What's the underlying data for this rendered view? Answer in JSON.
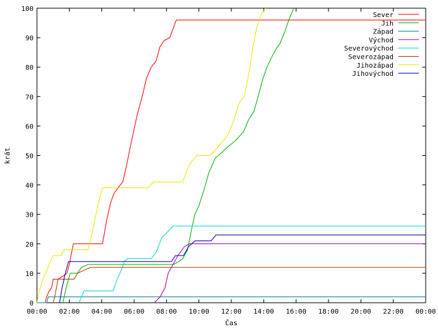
{
  "chart_data": {
    "type": "line",
    "xlabel": "Čas",
    "ylabel": "krát",
    "x_unit": "hours",
    "xlim": [
      0,
      24
    ],
    "ylim": [
      0,
      100
    ],
    "x_ticks": [
      {
        "value": 0,
        "label": "00:00"
      },
      {
        "value": 2,
        "label": "02:00"
      },
      {
        "value": 4,
        "label": "04:00"
      },
      {
        "value": 6,
        "label": "06:00"
      },
      {
        "value": 8,
        "label": "08:00"
      },
      {
        "value": 10,
        "label": "10:00"
      },
      {
        "value": 12,
        "label": "12:00"
      },
      {
        "value": 14,
        "label": "14:00"
      },
      {
        "value": 16,
        "label": "16:00"
      },
      {
        "value": 18,
        "label": "18:00"
      },
      {
        "value": 20,
        "label": "20:00"
      },
      {
        "value": 22,
        "label": "22:00"
      },
      {
        "value": 24,
        "label": "00:00"
      }
    ],
    "y_ticks": [
      0,
      10,
      20,
      30,
      40,
      50,
      60,
      70,
      80,
      90,
      100
    ],
    "grid": false,
    "legend_position": "top-right",
    "series": [
      {
        "name": "Sever",
        "color": "#ff0000",
        "points": [
          [
            0.5,
            0
          ],
          [
            0.6,
            2
          ],
          [
            0.75,
            4
          ],
          [
            0.9,
            5
          ],
          [
            1.0,
            8
          ],
          [
            1.3,
            8
          ],
          [
            1.6,
            9
          ],
          [
            1.85,
            10
          ],
          [
            2.0,
            13
          ],
          [
            2.1,
            16
          ],
          [
            2.25,
            20
          ],
          [
            4.05,
            20
          ],
          [
            4.3,
            28
          ],
          [
            4.55,
            34
          ],
          [
            4.75,
            37
          ],
          [
            5.0,
            39
          ],
          [
            5.3,
            41
          ],
          [
            5.55,
            47
          ],
          [
            5.8,
            54
          ],
          [
            6.0,
            59
          ],
          [
            6.2,
            64
          ],
          [
            6.5,
            70
          ],
          [
            6.75,
            76
          ],
          [
            7.05,
            80
          ],
          [
            7.35,
            82
          ],
          [
            7.6,
            87
          ],
          [
            7.85,
            89
          ],
          [
            8.2,
            90
          ],
          [
            8.4,
            93
          ],
          [
            8.6,
            96
          ],
          [
            24,
            96
          ]
        ]
      },
      {
        "name": "Jih",
        "color": "#00b000",
        "points": [
          [
            1.6,
            0
          ],
          [
            1.8,
            5
          ],
          [
            2.05,
            10
          ],
          [
            2.5,
            10
          ],
          [
            2.75,
            12
          ],
          [
            3.15,
            13
          ],
          [
            8.45,
            13
          ],
          [
            8.75,
            14
          ],
          [
            9.0,
            15
          ],
          [
            9.3,
            18
          ],
          [
            9.55,
            25
          ],
          [
            9.75,
            30
          ],
          [
            10.0,
            33
          ],
          [
            10.3,
            38
          ],
          [
            10.6,
            44
          ],
          [
            11.0,
            49
          ],
          [
            11.4,
            51
          ],
          [
            11.8,
            53
          ],
          [
            12.25,
            55
          ],
          [
            12.75,
            58
          ],
          [
            13.05,
            62
          ],
          [
            13.4,
            65
          ],
          [
            13.65,
            70
          ],
          [
            13.95,
            76
          ],
          [
            14.2,
            80
          ],
          [
            14.45,
            83
          ],
          [
            14.75,
            86
          ],
          [
            15.0,
            88
          ],
          [
            15.3,
            92
          ],
          [
            15.55,
            96
          ],
          [
            15.85,
            100
          ]
        ]
      },
      {
        "name": "Západ",
        "color": "#0080a0",
        "points": [
          [
            0,
            0
          ],
          [
            0.6,
            0
          ],
          [
            0.7,
            2
          ],
          [
            24,
            2
          ]
        ]
      },
      {
        "name": "Východ",
        "color": "#a000c0",
        "points": [
          [
            7.25,
            0
          ],
          [
            7.6,
            2
          ],
          [
            7.9,
            5
          ],
          [
            8.1,
            10
          ],
          [
            8.4,
            13
          ],
          [
            8.7,
            16
          ],
          [
            9.1,
            19
          ],
          [
            9.4,
            20
          ],
          [
            24,
            20
          ]
        ]
      },
      {
        "name": "Severovýchod",
        "color": "#00d8d8",
        "points": [
          [
            2.6,
            0
          ],
          [
            2.75,
            2
          ],
          [
            2.9,
            4
          ],
          [
            4.7,
            4
          ],
          [
            4.95,
            8
          ],
          [
            5.2,
            11
          ],
          [
            5.4,
            14
          ],
          [
            5.6,
            15
          ],
          [
            7.05,
            15
          ],
          [
            7.35,
            17
          ],
          [
            7.7,
            22
          ],
          [
            8.05,
            24
          ],
          [
            8.4,
            26
          ],
          [
            24,
            26
          ]
        ]
      },
      {
        "name": "Severozápad",
        "color": "#b04000",
        "points": [
          [
            1.0,
            0
          ],
          [
            1.1,
            2
          ],
          [
            1.3,
            8
          ],
          [
            2.3,
            8
          ],
          [
            2.5,
            10
          ],
          [
            2.9,
            11
          ],
          [
            3.3,
            12
          ],
          [
            24,
            12
          ]
        ]
      },
      {
        "name": "Jihozápad",
        "color": "#e8e800",
        "points": [
          [
            0,
            0
          ],
          [
            0.15,
            4
          ],
          [
            0.35,
            8
          ],
          [
            0.55,
            10
          ],
          [
            0.75,
            13
          ],
          [
            1.0,
            16
          ],
          [
            1.5,
            16
          ],
          [
            1.65,
            18
          ],
          [
            3.15,
            18
          ],
          [
            3.5,
            26
          ],
          [
            3.8,
            34
          ],
          [
            4.05,
            39
          ],
          [
            6.85,
            39
          ],
          [
            7.2,
            41
          ],
          [
            9.0,
            41
          ],
          [
            9.25,
            45
          ],
          [
            9.55,
            48
          ],
          [
            9.9,
            50
          ],
          [
            10.7,
            50
          ],
          [
            11.05,
            52
          ],
          [
            11.5,
            55
          ],
          [
            11.8,
            57
          ],
          [
            12.15,
            62
          ],
          [
            12.5,
            68
          ],
          [
            12.8,
            70
          ],
          [
            13.05,
            77
          ],
          [
            13.35,
            87
          ],
          [
            13.55,
            93
          ],
          [
            13.85,
            98
          ],
          [
            14.1,
            100
          ]
        ]
      },
      {
        "name": "Jihovýchod",
        "color": "#0000b0",
        "points": [
          [
            1.4,
            0
          ],
          [
            1.55,
            5
          ],
          [
            1.75,
            10
          ],
          [
            1.95,
            14
          ],
          [
            8.3,
            14
          ],
          [
            8.55,
            16
          ],
          [
            9.05,
            16
          ],
          [
            9.35,
            19
          ],
          [
            9.75,
            21
          ],
          [
            10.75,
            21
          ],
          [
            11.05,
            23
          ],
          [
            24,
            23
          ]
        ]
      }
    ]
  }
}
